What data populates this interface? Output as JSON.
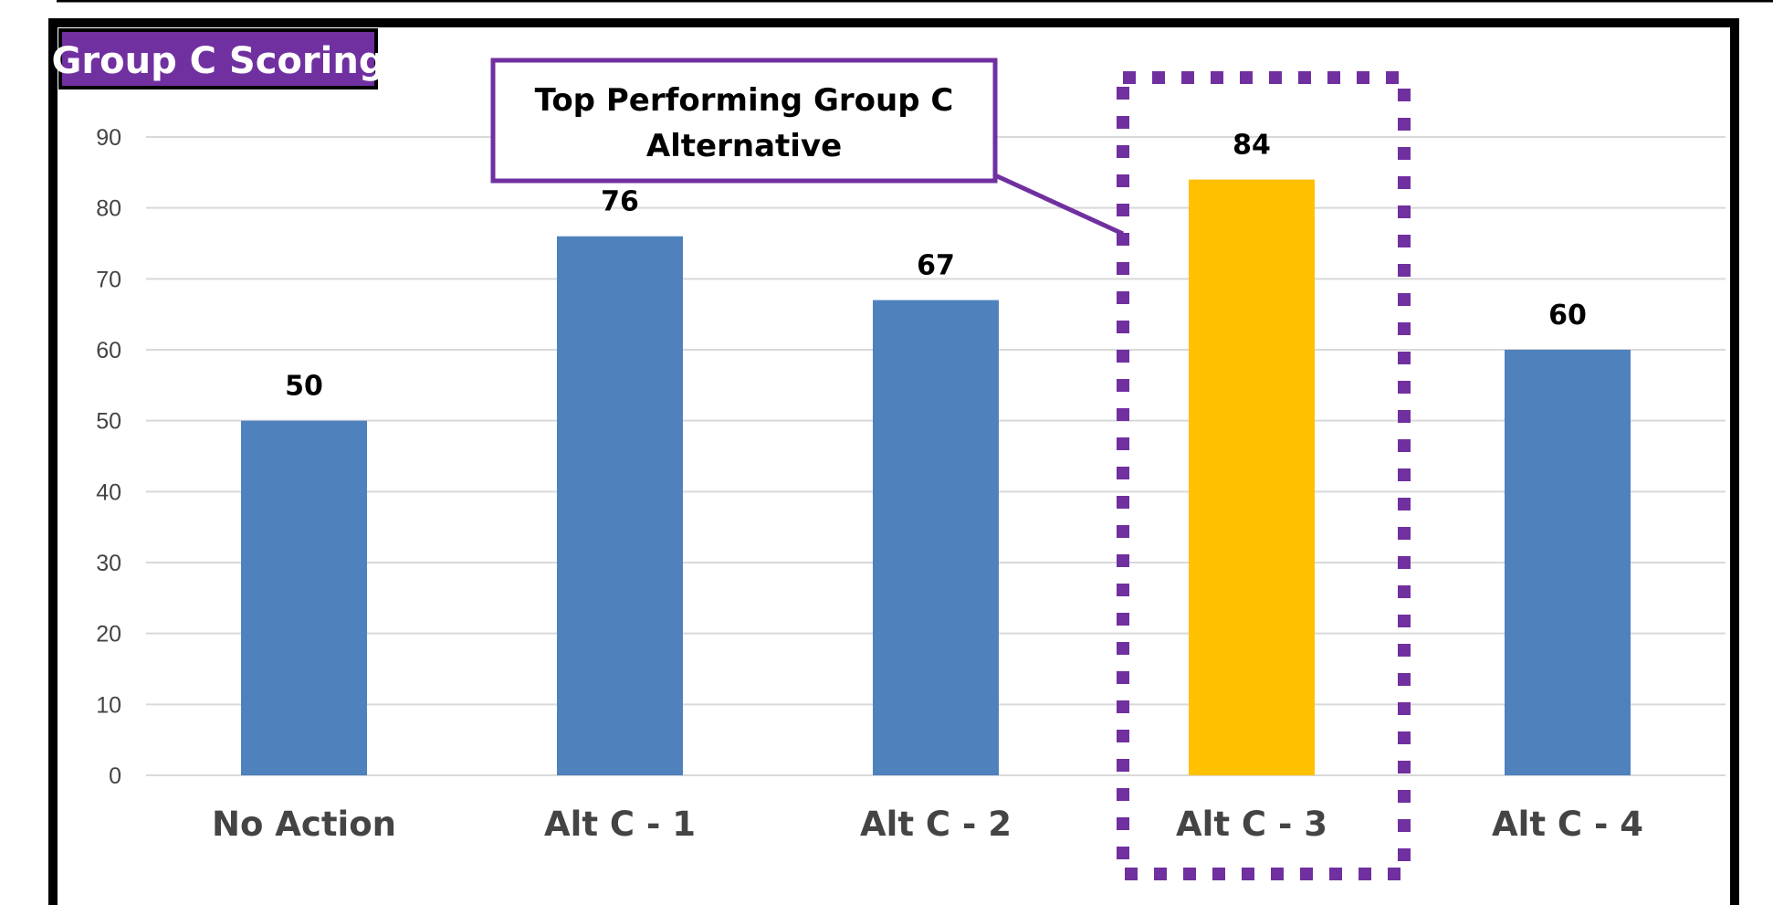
{
  "chart_data": {
    "type": "bar",
    "title": "Group C Scoring",
    "categories": [
      "No Action",
      "Alt C - 1",
      "Alt C - 2",
      "Alt C - 3",
      "Alt C - 4"
    ],
    "values": [
      50,
      76,
      67,
      84,
      60
    ],
    "data_labels": [
      "50",
      "76",
      "67",
      "84",
      "60"
    ],
    "highlighted_category": "Alt C - 3",
    "ylim": [
      0,
      90
    ],
    "yticks": [
      "0",
      "10",
      "20",
      "30",
      "40",
      "50",
      "60",
      "70",
      "80",
      "90"
    ],
    "grid": true,
    "legend": "none",
    "colors": {
      "bar": "#4f81bd",
      "highlight_bar": "#ffc000",
      "accent": "#7030a0",
      "title_bg": "#7030a0",
      "grid": "#d9d9d9"
    }
  },
  "callout": {
    "line1": "Top Performing Group C",
    "line2": "Alternative"
  }
}
